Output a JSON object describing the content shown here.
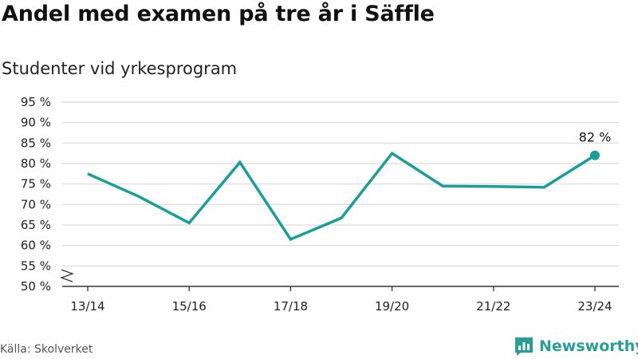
{
  "header": {
    "title": "Andel med examen på tre år i Säffle",
    "subtitle": "Studenter vid yrkesprogram"
  },
  "footer": {
    "source": "Källa: Skolverket",
    "brand": "Newsworthy"
  },
  "colors": {
    "line": "#1a9e96",
    "grid": "#d9d9d9",
    "brand": "#2a9d96"
  },
  "chart_data": {
    "type": "line",
    "title": "Andel med examen på tre år i Säffle",
    "subtitle": "Studenter vid yrkesprogram",
    "xlabel": "",
    "ylabel": "",
    "x": [
      "13/14",
      "14/15",
      "15/16",
      "16/17",
      "17/18",
      "18/19",
      "19/20",
      "20/21",
      "21/22",
      "22/23",
      "23/24"
    ],
    "x_tick_labels": [
      "13/14",
      "15/16",
      "17/18",
      "19/20",
      "21/22",
      "23/24"
    ],
    "series": [
      {
        "values": [
          77.5,
          72,
          65.5,
          80.3,
          61.5,
          66.7,
          82.5,
          74.5,
          74.4,
          74.2,
          82
        ]
      }
    ],
    "y_ticks": [
      50,
      55,
      60,
      65,
      70,
      75,
      80,
      85,
      90,
      95
    ],
    "y_tick_labels": [
      "50 %",
      "55 %",
      "60 %",
      "65 %",
      "70 %",
      "75 %",
      "80 %",
      "85 %",
      "90 %",
      "95 %"
    ],
    "ylim": [
      50,
      95
    ],
    "y_axis_break": true,
    "grid": true,
    "annotations": [
      {
        "x": "23/24",
        "y": 82,
        "text": "82 %"
      }
    ]
  }
}
